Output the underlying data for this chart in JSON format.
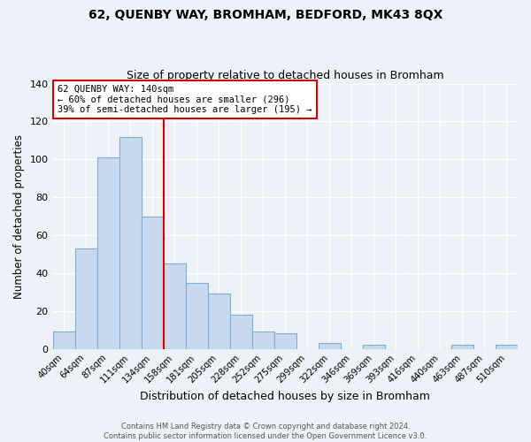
{
  "title": "62, QUENBY WAY, BROMHAM, BEDFORD, MK43 8QX",
  "subtitle": "Size of property relative to detached houses in Bromham",
  "xlabel": "Distribution of detached houses by size in Bromham",
  "ylabel": "Number of detached properties",
  "categories": [
    "40sqm",
    "64sqm",
    "87sqm",
    "111sqm",
    "134sqm",
    "158sqm",
    "181sqm",
    "205sqm",
    "228sqm",
    "252sqm",
    "275sqm",
    "299sqm",
    "322sqm",
    "346sqm",
    "369sqm",
    "393sqm",
    "416sqm",
    "440sqm",
    "463sqm",
    "487sqm",
    "510sqm"
  ],
  "values": [
    9,
    53,
    101,
    112,
    70,
    45,
    35,
    29,
    18,
    9,
    8,
    0,
    3,
    0,
    2,
    0,
    0,
    0,
    2,
    0,
    2
  ],
  "bar_fill_color": "#c8d9ee",
  "bar_edge_color": "#7bafd4",
  "vline_color": "#cc0000",
  "vline_index": 4,
  "box_text_line1": "62 QUENBY WAY: 140sqm",
  "box_text_line2": "← 60% of detached houses are smaller (296)",
  "box_text_line3": "39% of semi-detached houses are larger (195) →",
  "box_edge_color": "#cc0000",
  "ylim": [
    0,
    140
  ],
  "yticks": [
    0,
    20,
    40,
    60,
    80,
    100,
    120,
    140
  ],
  "footer_line1": "Contains HM Land Registry data © Crown copyright and database right 2024.",
  "footer_line2": "Contains public sector information licensed under the Open Government Licence v3.0.",
  "bg_color": "#eef2f8",
  "grid_color": "#ffffff"
}
